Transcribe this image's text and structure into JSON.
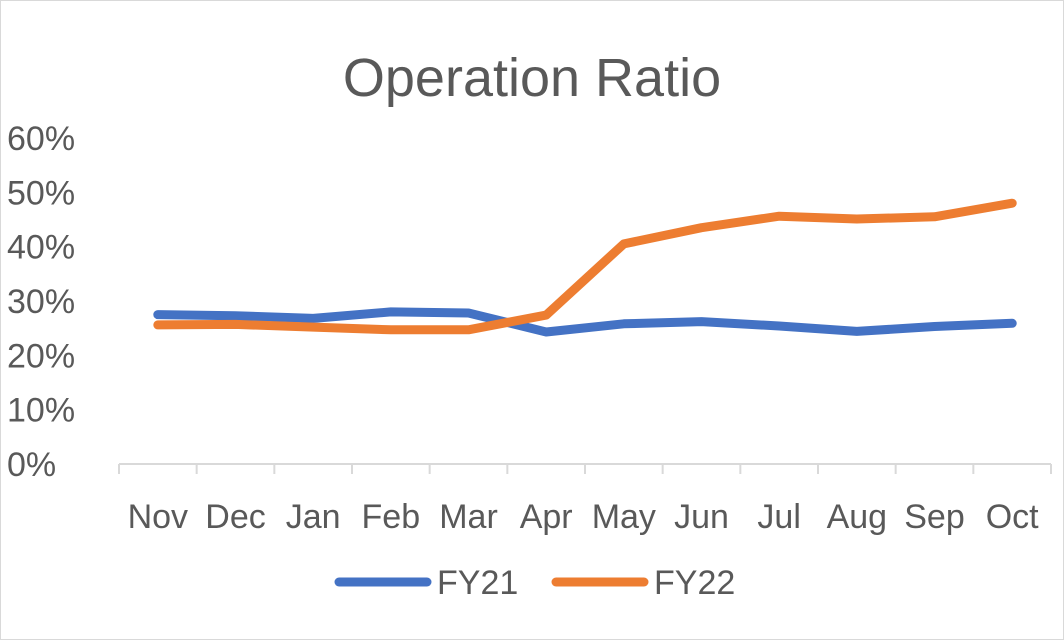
{
  "chart_data": {
    "type": "line",
    "title": "Operation Ratio",
    "xlabel": "",
    "ylabel": "",
    "categories": [
      "Nov",
      "Dec",
      "Jan",
      "Feb",
      "Mar",
      "Apr",
      "May",
      "Jun",
      "Jul",
      "Aug",
      "Sep",
      "Oct"
    ],
    "ylim": [
      0,
      60
    ],
    "yticks": [
      0,
      10,
      20,
      30,
      40,
      50,
      60
    ],
    "ytick_labels": [
      "0%",
      "10%",
      "20%",
      "30%",
      "40%",
      "50%",
      "60%"
    ],
    "grid": false,
    "legend": "bottom",
    "series": [
      {
        "name": "FY21",
        "color": "#4472c4",
        "values": [
          27.5,
          27.3,
          26.8,
          28.0,
          27.8,
          24.3,
          25.8,
          26.2,
          25.4,
          24.4,
          25.3,
          25.9
        ]
      },
      {
        "name": "FY22",
        "color": "#ed7d31",
        "values": [
          25.6,
          25.7,
          25.2,
          24.7,
          24.7,
          27.4,
          40.5,
          43.5,
          45.6,
          45.1,
          45.5,
          48.0
        ]
      }
    ]
  }
}
